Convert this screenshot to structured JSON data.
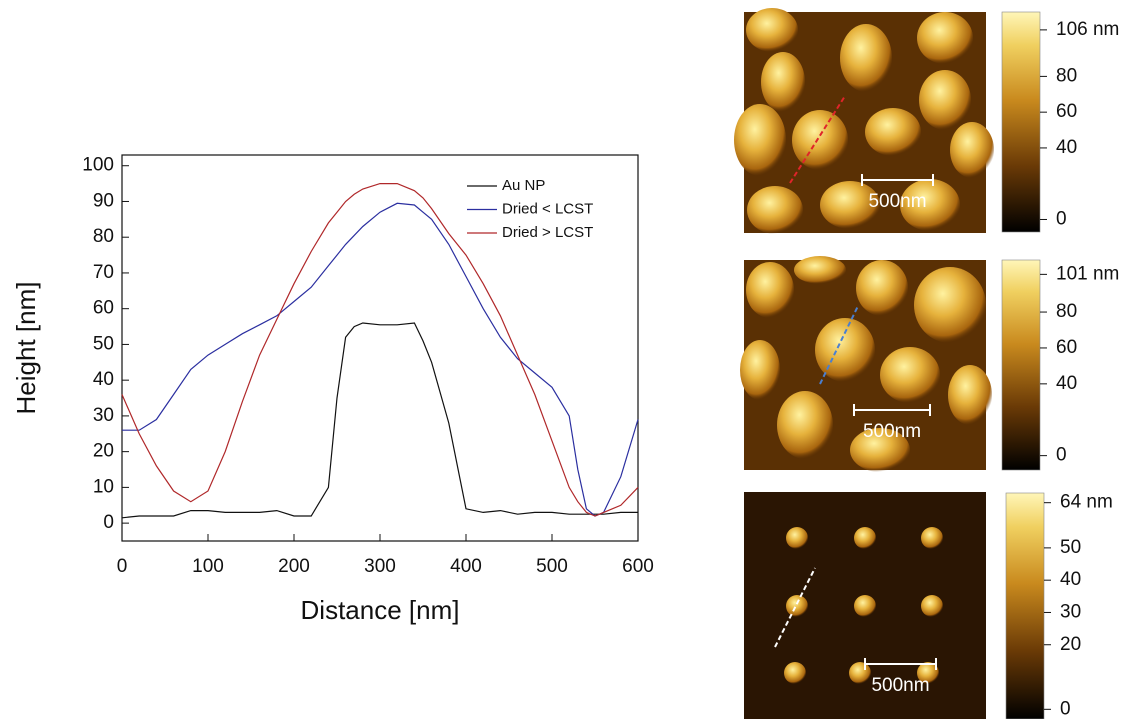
{
  "chart_data": {
    "type": "line",
    "x": [
      0,
      20,
      40,
      60,
      80,
      100,
      120,
      140,
      160,
      180,
      200,
      220,
      240,
      250,
      260,
      270,
      280,
      300,
      320,
      340,
      350,
      360,
      380,
      400,
      420,
      440,
      460,
      480,
      500,
      520,
      530,
      540,
      550,
      560,
      580,
      600
    ],
    "series": [
      {
        "name": "Au NP",
        "color": "#111111",
        "values": [
          1.5,
          2,
          2,
          2,
          3.5,
          3.5,
          3,
          3,
          3,
          3.5,
          2,
          2,
          10,
          35,
          52,
          55,
          56,
          55.5,
          55.5,
          56,
          51,
          45,
          28,
          4,
          3,
          3.5,
          2.5,
          3,
          3,
          2.5,
          2.5,
          2.5,
          2.5,
          2.5,
          3,
          3
        ]
      },
      {
        "name": "Dried < LCST",
        "color": "#2b2fa0",
        "values": [
          26,
          26,
          29,
          36,
          43,
          47,
          50,
          53,
          55.5,
          58,
          62,
          66,
          72,
          75,
          78,
          80.5,
          83,
          87,
          89.5,
          89,
          87,
          85,
          78,
          69,
          60,
          52,
          46,
          42,
          38,
          30,
          15,
          4,
          2,
          3,
          13,
          29
        ]
      },
      {
        "name": "Dried > LCST",
        "color": "#b0282a",
        "values": [
          36,
          25,
          16,
          9,
          6,
          9,
          20,
          34,
          47,
          57,
          67,
          76,
          84,
          87,
          90,
          92,
          93.5,
          95,
          95,
          93,
          91,
          88,
          81,
          75,
          67,
          58,
          47,
          36,
          23,
          10,
          6,
          3,
          2,
          3,
          5,
          10
        ]
      }
    ],
    "xlabel": "Distance [nm]",
    "ylabel": "Height [nm]",
    "xlim": [
      0,
      600
    ],
    "ylim": [
      -5,
      103
    ],
    "xticks": [
      0,
      100,
      200,
      300,
      400,
      500,
      600
    ],
    "yticks": [
      0,
      10,
      20,
      30,
      40,
      50,
      60,
      70,
      80,
      90,
      100
    ],
    "legend": "upper right"
  },
  "afm_panels": [
    {
      "clim": [
        -7,
        116
      ],
      "colorbar_ticks": [
        {
          "value": 106,
          "label": "106 nm"
        },
        80,
        60,
        40,
        0
      ],
      "scale_bar": "500nm",
      "line_color": "#e0242a"
    },
    {
      "clim": [
        -8,
        109
      ],
      "colorbar_ticks": [
        {
          "value": 101,
          "label": "101 nm"
        },
        80,
        60,
        40,
        0
      ],
      "scale_bar": "500nm",
      "line_color": "#4a7fd0"
    },
    {
      "clim": [
        -3,
        67
      ],
      "colorbar_ticks": [
        {
          "value": 64,
          "label": "64 nm"
        },
        50,
        40,
        30,
        20,
        0
      ],
      "scale_bar": "500nm",
      "line_color": "#ffffff"
    }
  ]
}
